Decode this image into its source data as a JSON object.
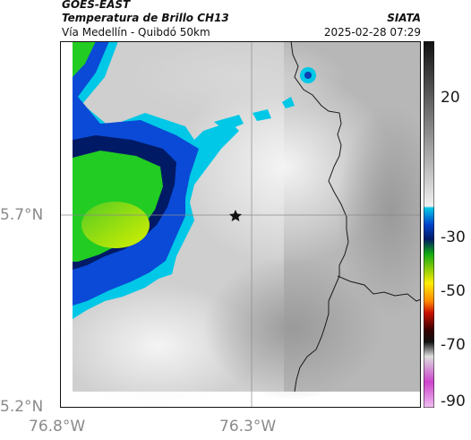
{
  "header": {
    "satellite": "GOES-EAST",
    "product": "Temperatura de Brillo CH13",
    "route": "Vía Medellín - Quibdó 50km",
    "agency": "SIATA",
    "datetime": "2025-02-28 07:29"
  },
  "map": {
    "lat_ticks": [
      "5.7°N",
      "5.2°N"
    ],
    "lon_ticks": [
      "76.8°W",
      "76.3°W"
    ],
    "marker_icon": "star-icon"
  },
  "colorbar": {
    "ticks": [
      "20",
      "-30",
      "-50",
      "-70",
      "-90"
    ],
    "palette": {
      "warm_gray_high": "#f2f2f2",
      "warm_gray_low": "#222222",
      "cyan": "#00c8e6",
      "blue": "#0044cc",
      "dark_blue": "#001a66",
      "green": "#22cc22",
      "yellow": "#ffee00",
      "red": "#dd2200",
      "magenta": "#cc44cc"
    }
  }
}
